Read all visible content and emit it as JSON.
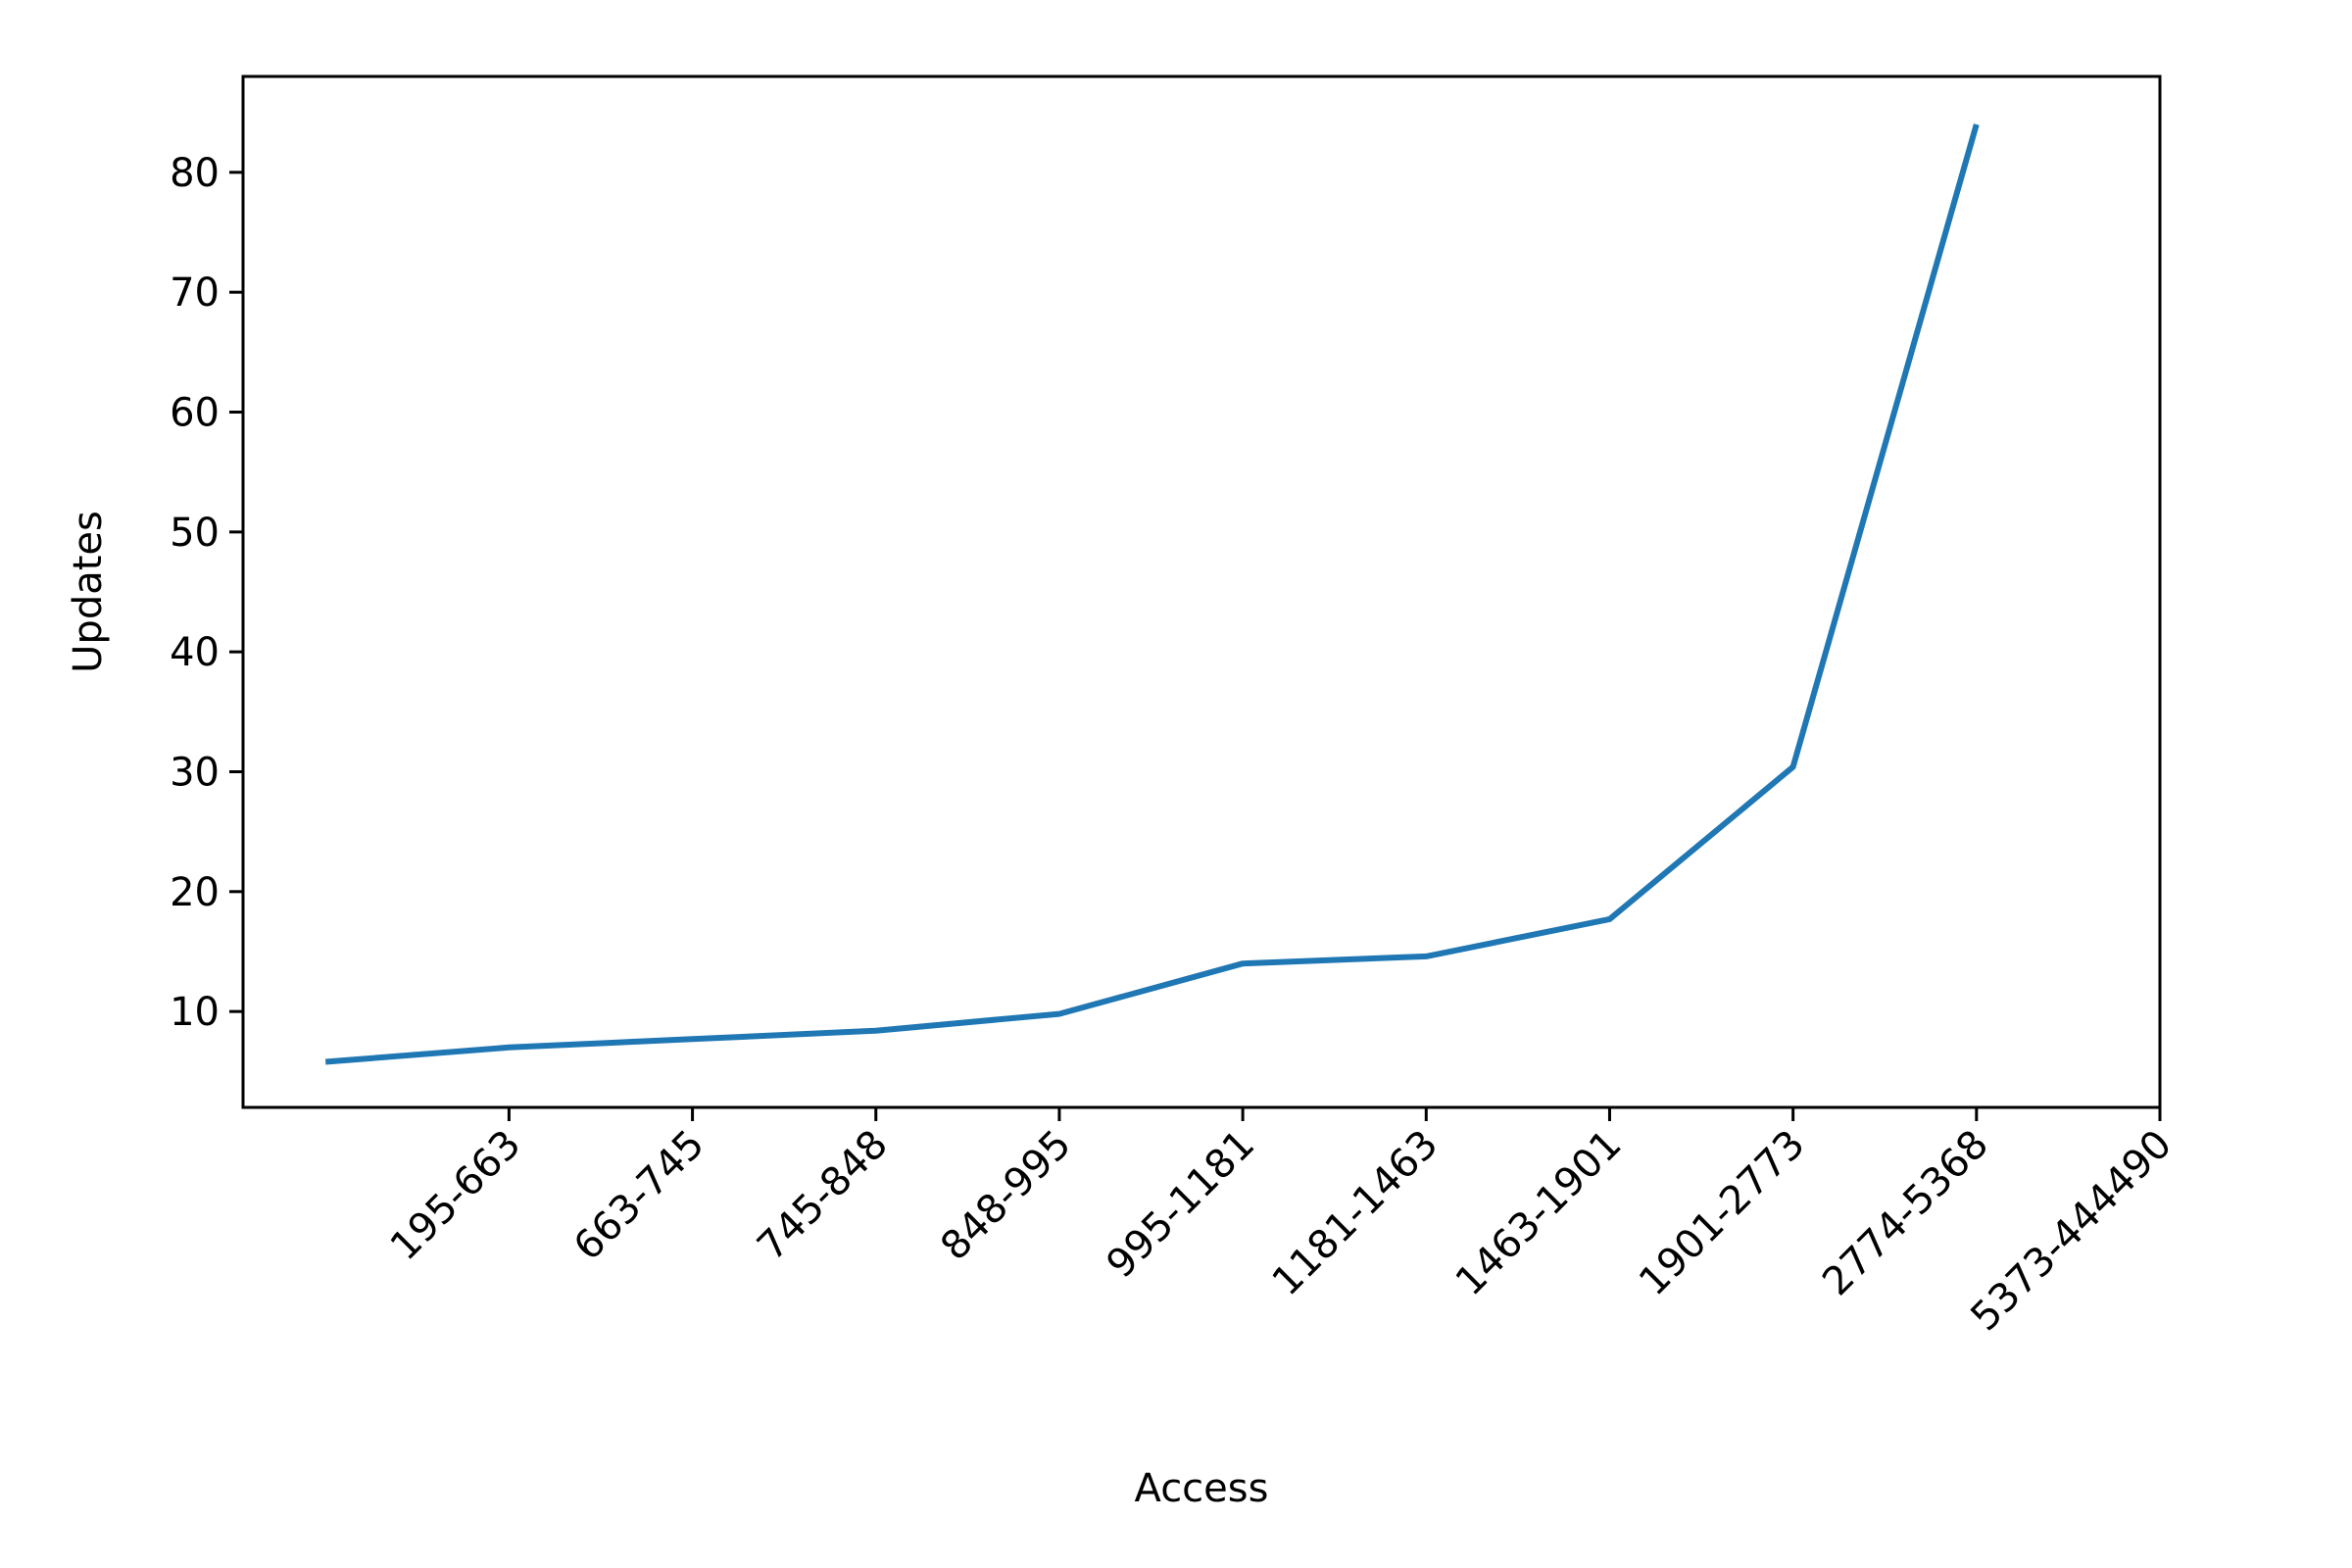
{
  "chart_data": {
    "type": "line",
    "xlabel": "Access",
    "ylabel": "Updates",
    "x_ticks": [
      "195-663",
      "663-745",
      "745-848",
      "848-995",
      "995-1181",
      "1181-1463",
      "1463-1901",
      "1901-2773",
      "2774-5368",
      "5373-444490"
    ],
    "y_ticks": [
      10,
      20,
      30,
      40,
      50,
      60,
      70,
      80
    ],
    "xlim": [
      -0.45,
      10.0
    ],
    "ylim": [
      2,
      88
    ],
    "series": [
      {
        "x": [
          0.0,
          1.0,
          2.0,
          3.0,
          4.0,
          5.0,
          6.0,
          7.0,
          8.0,
          9.0
        ],
        "y": [
          5.8,
          7.0,
          7.7,
          8.4,
          9.8,
          14.0,
          14.6,
          17.7,
          30.4,
          84.0
        ],
        "color": "#1f77b4"
      }
    ],
    "grid": false,
    "legend": "none"
  }
}
